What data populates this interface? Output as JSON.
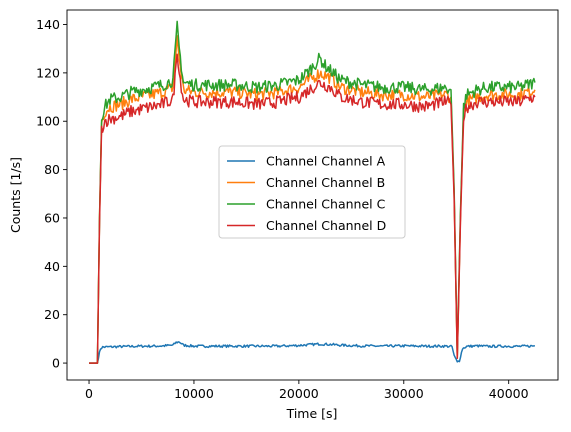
{
  "chart_data": {
    "type": "line",
    "title": "",
    "xlabel": "Time [s]",
    "ylabel": "Counts [1/s]",
    "xlim": [
      -2100,
      44700
    ],
    "ylim": [
      -7,
      146
    ],
    "x_ticks": [
      0,
      10000,
      20000,
      30000,
      40000
    ],
    "y_ticks": [
      0,
      20,
      40,
      60,
      80,
      100,
      120,
      140
    ],
    "grid": false,
    "legend_position": "center-right",
    "series": [
      {
        "name": "Channel Channel A",
        "color": "#1f77b4",
        "x": [
          0,
          800,
          900,
          1100,
          1300,
          2000,
          3000,
          4000,
          5000,
          6000,
          7000,
          8000,
          8300,
          8600,
          9000,
          10000,
          12000,
          14000,
          16000,
          18000,
          20000,
          21000,
          22000,
          23000,
          24000,
          26000,
          28000,
          30000,
          32000,
          34000,
          34600,
          34800,
          35100,
          35300,
          35600,
          36000,
          37000,
          38000,
          40000,
          41000,
          42500
        ],
        "values": [
          0,
          0,
          2.5,
          6,
          6.6,
          6.7,
          6.8,
          6.9,
          7.0,
          7.0,
          7.1,
          7.4,
          8.5,
          8.8,
          7.4,
          7.0,
          7.0,
          7.0,
          7.0,
          7.0,
          7.3,
          7.6,
          7.9,
          7.7,
          7.4,
          7.1,
          7.0,
          7.1,
          7.0,
          7.0,
          6.8,
          3,
          0.5,
          1,
          6,
          6.9,
          7.1,
          6.9,
          7.0,
          6.9,
          7.1
        ]
      },
      {
        "name": "Channel Channel B",
        "color": "#ff7f0e",
        "x": [
          0,
          800,
          1000,
          1200,
          1500,
          2000,
          3000,
          4000,
          5000,
          6000,
          7000,
          8000,
          8200,
          8400,
          8600,
          9000,
          10000,
          12000,
          14000,
          16000,
          18000,
          20000,
          21000,
          22000,
          23000,
          24000,
          26000,
          28000,
          30000,
          32000,
          34000,
          34500,
          34800,
          35100,
          35400,
          35700,
          36000,
          37000,
          38000,
          40000,
          41000,
          42500
        ],
        "values": [
          0,
          0,
          60,
          100,
          104,
          106,
          107,
          109,
          110,
          111,
          112,
          114,
          124,
          134,
          126,
          113,
          112,
          112,
          112,
          111,
          112,
          114,
          117,
          120,
          118,
          114,
          112,
          111,
          111,
          110,
          111,
          110,
          70,
          2,
          60,
          104,
          108,
          110,
          111,
          111,
          111,
          113
        ]
      },
      {
        "name": "Channel Channel C",
        "color": "#2ca02c",
        "x": [
          0,
          800,
          1000,
          1200,
          1500,
          2000,
          3000,
          4000,
          5000,
          6000,
          7000,
          8000,
          8200,
          8400,
          8600,
          9000,
          10000,
          12000,
          14000,
          16000,
          18000,
          20000,
          21000,
          22000,
          22500,
          23000,
          24000,
          26000,
          28000,
          30000,
          32000,
          34000,
          34500,
          34800,
          35100,
          35400,
          35700,
          36000,
          37000,
          38000,
          40000,
          41000,
          42500
        ],
        "values": [
          0,
          0,
          60,
          102,
          106,
          109,
          110,
          112,
          113,
          114,
          115,
          117,
          128,
          139,
          130,
          116,
          115,
          115,
          115,
          114,
          115,
          117,
          121,
          126,
          123,
          121,
          117,
          115,
          114,
          114,
          113,
          114,
          113,
          72,
          3,
          62,
          106,
          111,
          113,
          114,
          114,
          114,
          116
        ]
      },
      {
        "name": "Channel Channel D",
        "color": "#d62728",
        "x": [
          0,
          800,
          1000,
          1200,
          1500,
          2000,
          3000,
          4000,
          5000,
          6000,
          7000,
          8000,
          8200,
          8400,
          8600,
          9000,
          10000,
          12000,
          14000,
          16000,
          18000,
          20000,
          21000,
          22000,
          23000,
          24000,
          26000,
          28000,
          30000,
          32000,
          34000,
          34500,
          34800,
          35100,
          35400,
          35700,
          36000,
          37000,
          38000,
          40000,
          41000,
          42500
        ],
        "values": [
          0,
          0,
          58,
          97,
          100,
          101,
          102,
          104,
          105,
          106,
          107,
          109,
          118,
          130,
          120,
          109,
          108,
          108,
          108,
          107,
          108,
          110,
          113,
          116,
          114,
          110,
          108,
          107,
          107,
          106,
          108,
          107,
          68,
          2,
          58,
          102,
          106,
          108,
          108,
          108,
          108,
          110
        ]
      }
    ]
  }
}
